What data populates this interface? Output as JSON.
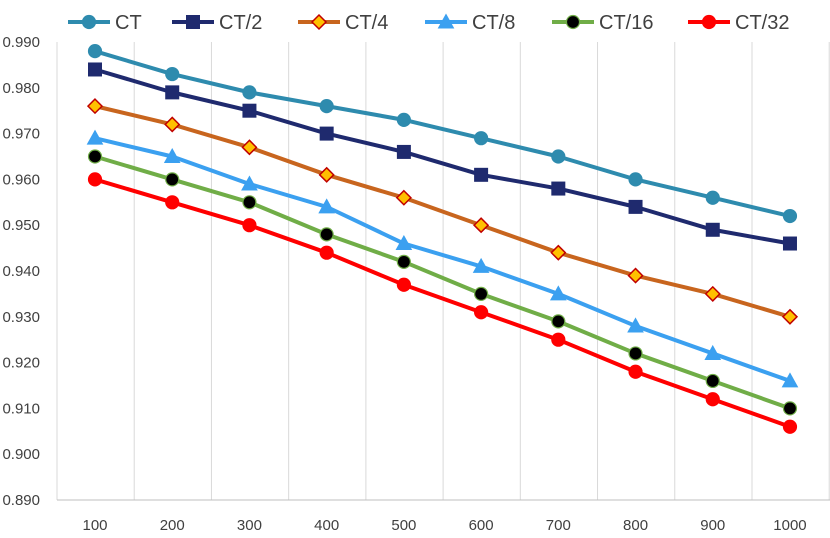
{
  "chart_data": {
    "type": "line",
    "title": "",
    "xlabel": "",
    "ylabel": "",
    "x": [
      100,
      200,
      300,
      400,
      500,
      600,
      700,
      800,
      900,
      1000
    ],
    "ylim": [
      0.89,
      0.99
    ],
    "ytick_step": 0.01,
    "grid": "vertical",
    "legend_position": "top",
    "series": [
      {
        "name": "CT",
        "color": "#2E8BAE",
        "marker": "circle",
        "marker_fill": "#2E8BAE",
        "values": [
          0.988,
          0.983,
          0.979,
          0.976,
          0.973,
          0.969,
          0.965,
          0.96,
          0.956,
          0.952
        ]
      },
      {
        "name": "CT/2",
        "color": "#1F2A6E",
        "marker": "square",
        "marker_fill": "#1F2A6E",
        "values": [
          0.984,
          0.979,
          0.975,
          0.97,
          0.966,
          0.961,
          0.958,
          0.954,
          0.949,
          0.946
        ]
      },
      {
        "name": "CT/4",
        "color": "#C8651E",
        "marker": "diamond",
        "marker_fill": "#FFC000",
        "values": [
          0.976,
          0.972,
          0.967,
          0.961,
          0.956,
          0.95,
          0.944,
          0.939,
          0.935,
          0.93
        ]
      },
      {
        "name": "CT/8",
        "color": "#3BA0F0",
        "marker": "triangle",
        "marker_fill": "#3BA0F0",
        "values": [
          0.969,
          0.965,
          0.959,
          0.954,
          0.946,
          0.941,
          0.935,
          0.928,
          0.922,
          0.916
        ]
      },
      {
        "name": "CT/16",
        "color": "#70AD47",
        "marker": "circle",
        "marker_fill": "#000000",
        "values": [
          0.965,
          0.96,
          0.955,
          0.948,
          0.942,
          0.935,
          0.929,
          0.922,
          0.916,
          0.91
        ]
      },
      {
        "name": "CT/32",
        "color": "#FF0000",
        "marker": "circle",
        "marker_fill": "#FF0000",
        "values": [
          0.96,
          0.955,
          0.95,
          0.944,
          0.937,
          0.931,
          0.925,
          0.918,
          0.912,
          0.906
        ]
      }
    ]
  }
}
